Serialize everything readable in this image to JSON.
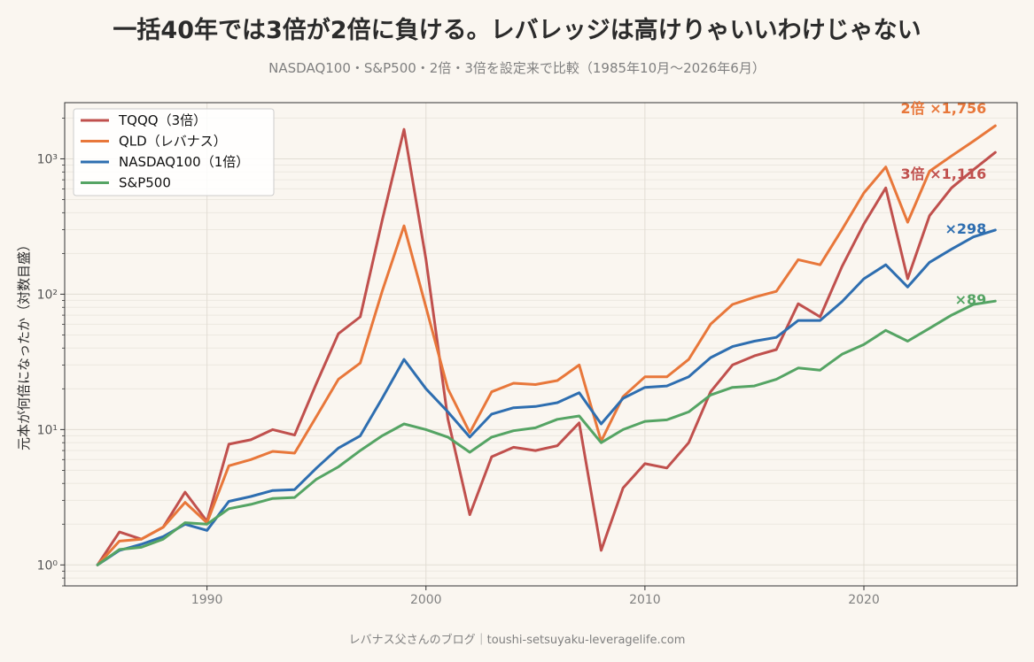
{
  "title": "一括40年では3倍が2倍に負ける。レバレッジは高けりゃいいわけじゃない",
  "subtitle": "NASDAQ100・S&P500・2倍・3倍を設定来で比較（1985年10月〜2026年6月）",
  "footer": "レバナス父さんのブログ｜toushi-setsuyaku-leveragelife.com",
  "colors": {
    "background": "#faf6f0",
    "tqqq": "#c0504d",
    "qld": "#e8773a",
    "nasdaq": "#2e6eb0",
    "sp500": "#55a464"
  },
  "chart_data": {
    "type": "line",
    "ylabel": "元本が何倍になったか（対数目盛）",
    "xlabel": "",
    "y_scale": "log",
    "xlim": [
      1983.5,
      2027.0
    ],
    "ylim": [
      0.7,
      2600
    ],
    "x_ticks": [
      1990,
      2000,
      2010,
      2020
    ],
    "y_ticks": [
      {
        "value": 1,
        "label": "10⁰"
      },
      {
        "value": 10,
        "label": "10¹"
      },
      {
        "value": 100,
        "label": "10²"
      },
      {
        "value": 1000,
        "label": "10³"
      }
    ],
    "grid": true,
    "legend_position": "top-left",
    "x": [
      1985,
      1986,
      1987,
      1988,
      1989,
      1990,
      1991,
      1992,
      1993,
      1994,
      1995,
      1996,
      1997,
      1998,
      1999,
      2000,
      2001,
      2002,
      2003,
      2004,
      2005,
      2006,
      2007,
      2008,
      2009,
      2010,
      2011,
      2012,
      2013,
      2014,
      2015,
      2016,
      2017,
      2018,
      2019,
      2020,
      2021,
      2022,
      2023,
      2024,
      2025,
      2026
    ],
    "series": [
      {
        "name": "TQQQ（3倍）",
        "color_key": "tqqq",
        "values": [
          1.0,
          1.75,
          1.55,
          1.9,
          3.45,
          2.1,
          7.8,
          8.4,
          10.0,
          9.1,
          22,
          51,
          68,
          350,
          1650,
          180,
          12,
          2.35,
          6.3,
          7.4,
          7.0,
          7.6,
          11.2,
          1.28,
          3.7,
          5.6,
          5.2,
          8.0,
          19,
          30,
          35,
          39,
          85,
          68,
          160,
          330,
          610,
          130,
          380,
          610,
          830,
          1116
        ]
      },
      {
        "name": "QLD（レバナス）",
        "color_key": "qld",
        "values": [
          1.0,
          1.5,
          1.55,
          1.9,
          2.9,
          2.05,
          5.4,
          6.0,
          6.9,
          6.7,
          12.5,
          23.5,
          31,
          105,
          320,
          80,
          20,
          9.5,
          19,
          22,
          21.5,
          23,
          30,
          8.2,
          17.5,
          24.5,
          24.5,
          33,
          60,
          84,
          95,
          105,
          180,
          165,
          300,
          560,
          870,
          340,
          810,
          1050,
          1350,
          1756
        ]
      },
      {
        "name": "NASDAQ100（1倍）",
        "color_key": "nasdaq",
        "values": [
          1.0,
          1.28,
          1.42,
          1.62,
          2.0,
          1.8,
          2.95,
          3.2,
          3.55,
          3.6,
          5.2,
          7.3,
          9.0,
          17,
          33,
          20,
          13.5,
          8.8,
          13,
          14.5,
          14.8,
          15.8,
          18.7,
          11,
          17,
          20.5,
          21,
          24.5,
          34,
          41,
          45,
          48,
          64,
          64,
          88,
          130,
          165,
          113,
          172,
          215,
          265,
          298
        ]
      },
      {
        "name": "S&P500",
        "color_key": "sp500",
        "values": [
          1.0,
          1.3,
          1.35,
          1.55,
          2.05,
          2.0,
          2.6,
          2.8,
          3.1,
          3.15,
          4.3,
          5.3,
          7.0,
          9.0,
          11,
          10,
          8.8,
          6.8,
          8.8,
          9.8,
          10.3,
          11.9,
          12.6,
          8.0,
          10.0,
          11.5,
          11.8,
          13.5,
          18,
          20.5,
          21,
          23.5,
          28.5,
          27.5,
          36,
          42.5,
          54,
          45,
          56,
          70,
          84,
          89
        ]
      }
    ],
    "annotations": [
      {
        "text": "2倍 ×1,756",
        "color_key": "qld"
      },
      {
        "text": "3倍 ×1,116",
        "color_key": "tqqq"
      },
      {
        "text": "×298",
        "color_key": "nasdaq"
      },
      {
        "text": "×89",
        "color_key": "sp500"
      }
    ]
  }
}
